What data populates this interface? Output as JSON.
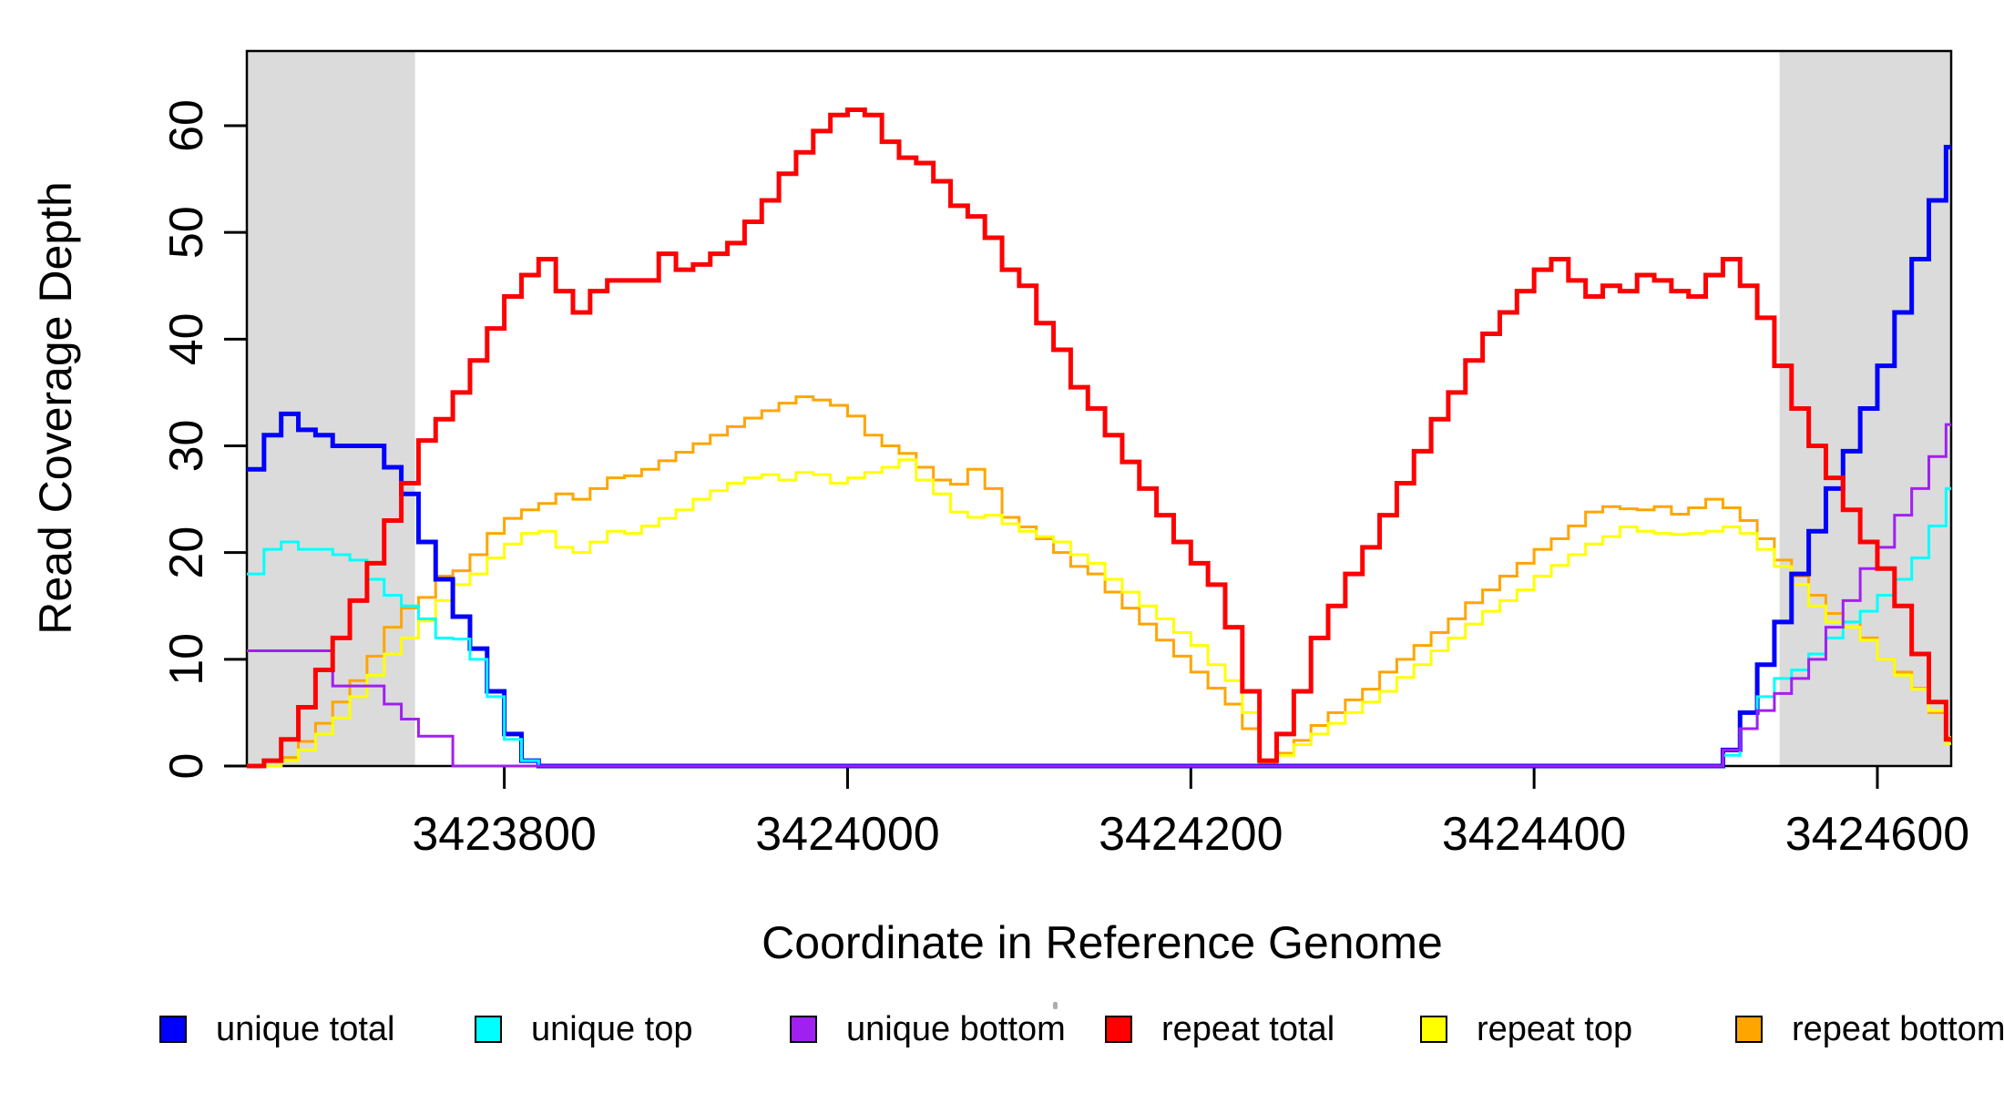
{
  "figure": {
    "y_axis": {
      "label": "Read Coverage Depth",
      "tick_labels": [
        "0",
        "10",
        "20",
        "30",
        "40",
        "50",
        "60"
      ],
      "tick_values": [
        0,
        10,
        20,
        30,
        40,
        50,
        60
      ]
    },
    "x_axis": {
      "label": "Coordinate in Reference Genome",
      "tick_labels": [
        "3423800",
        "3424000",
        "3424200",
        "3424400",
        "3424600"
      ],
      "tick_values": [
        3423800,
        3424000,
        3424200,
        3424400,
        3424600
      ]
    },
    "legend": {
      "items": [
        {
          "label": "unique total",
          "color": "#0000FF"
        },
        {
          "label": "unique top",
          "color": "#00FFFF"
        },
        {
          "label": "unique bottom",
          "color": "#A020F0"
        },
        {
          "label": "repeat total",
          "color": "#FF0000"
        },
        {
          "label": "repeat top",
          "color": "#FFFF00"
        },
        {
          "label": "repeat bottom",
          "color": "#FFA500"
        }
      ]
    },
    "highlight_color": "#DBDBDB",
    "axis_color": "#000000"
  },
  "chart_data": {
    "type": "line",
    "step": true,
    "title": "",
    "xlabel": "Coordinate in Reference Genome",
    "ylabel": "Read Coverage Depth",
    "xlim": [
      3423650,
      3424643
    ],
    "ylim": [
      0,
      67
    ],
    "grid": false,
    "legend_position": "bottom",
    "highlight_regions": [
      {
        "x0": 3423650,
        "x1": 3423748
      },
      {
        "x0": 3424543,
        "x1": 3424643
      }
    ],
    "x": [
      3423650,
      3423660,
      3423670,
      3423680,
      3423690,
      3423700,
      3423710,
      3423720,
      3423730,
      3423740,
      3423750,
      3423760,
      3423770,
      3423780,
      3423790,
      3423800,
      3423810,
      3423820,
      3423830,
      3423840,
      3423850,
      3423860,
      3423870,
      3423880,
      3423890,
      3423900,
      3423910,
      3423920,
      3423930,
      3423940,
      3423950,
      3423960,
      3423970,
      3423980,
      3423990,
      3424000,
      3424010,
      3424020,
      3424030,
      3424040,
      3424050,
      3424060,
      3424070,
      3424080,
      3424090,
      3424100,
      3424110,
      3424120,
      3424130,
      3424140,
      3424150,
      3424160,
      3424170,
      3424180,
      3424190,
      3424200,
      3424210,
      3424220,
      3424230,
      3424240,
      3424250,
      3424260,
      3424270,
      3424280,
      3424290,
      3424300,
      3424310,
      3424320,
      3424330,
      3424340,
      3424350,
      3424360,
      3424370,
      3424380,
      3424390,
      3424400,
      3424410,
      3424420,
      3424430,
      3424440,
      3424450,
      3424460,
      3424470,
      3424480,
      3424490,
      3424500,
      3424510,
      3424520,
      3424530,
      3424540,
      3424550,
      3424560,
      3424570,
      3424580,
      3424590,
      3424600,
      3424610,
      3424620,
      3424630,
      3424640
    ],
    "series": [
      {
        "name": "unique total",
        "color": "#0000FF",
        "width": 5,
        "values": [
          27.8,
          31,
          33,
          31.5,
          31,
          30,
          30,
          30,
          28,
          25.5,
          21,
          17.5,
          14,
          11,
          7,
          3,
          0.5,
          0,
          0,
          0,
          0,
          0,
          0,
          0,
          0,
          0,
          0,
          0,
          0,
          0,
          0,
          0,
          0,
          0,
          0,
          0,
          0,
          0,
          0,
          0,
          0,
          0,
          0,
          0,
          0,
          0,
          0,
          0,
          0,
          0,
          0,
          0,
          0,
          0,
          0,
          0,
          0,
          0,
          0,
          0,
          0,
          0,
          0,
          0,
          0,
          0,
          0,
          0,
          0,
          0,
          0,
          0,
          0,
          0,
          0,
          0,
          0,
          0,
          0,
          0,
          0,
          0,
          0,
          0,
          0,
          0,
          1.5,
          5,
          9.5,
          13.5,
          18,
          22,
          26,
          29.5,
          33.5,
          37.5,
          42.5,
          47.5,
          53,
          58
        ]
      },
      {
        "name": "unique top",
        "color": "#00FFFF",
        "width": 3,
        "values": [
          18,
          20.3,
          21,
          20.3,
          20.3,
          19.8,
          19.3,
          17.5,
          16,
          15,
          13.8,
          12,
          11.9,
          10,
          6.5,
          2.5,
          0.5,
          0,
          0,
          0,
          0,
          0,
          0,
          0,
          0,
          0,
          0,
          0,
          0,
          0,
          0,
          0,
          0,
          0,
          0,
          0,
          0,
          0,
          0,
          0,
          0,
          0,
          0,
          0,
          0,
          0,
          0,
          0,
          0,
          0,
          0,
          0,
          0,
          0,
          0,
          0,
          0,
          0,
          0,
          0,
          0,
          0,
          0,
          0,
          0,
          0,
          0,
          0,
          0,
          0,
          0,
          0,
          0,
          0,
          0,
          0,
          0,
          0,
          0,
          0,
          0,
          0,
          0,
          0,
          0,
          0,
          1,
          3.5,
          6.5,
          8.2,
          9,
          10.5,
          12,
          13.5,
          14.5,
          16,
          17.5,
          19.5,
          22.5,
          26
        ]
      },
      {
        "name": "unique bottom",
        "color": "#A020F0",
        "width": 3,
        "values": [
          10.8,
          10.8,
          10.8,
          10.8,
          10.8,
          7.5,
          7.5,
          7.5,
          5.8,
          4.4,
          2.8,
          2.8,
          0,
          0,
          0,
          0,
          0,
          0,
          0,
          0,
          0,
          0,
          0,
          0,
          0,
          0,
          0,
          0,
          0,
          0,
          0,
          0,
          0,
          0,
          0,
          0,
          0,
          0,
          0,
          0,
          0,
          0,
          0,
          0,
          0,
          0,
          0,
          0,
          0,
          0,
          0,
          0,
          0,
          0,
          0,
          0,
          0,
          0,
          0,
          0,
          0,
          0,
          0,
          0,
          0,
          0,
          0,
          0,
          0,
          0,
          0,
          0,
          0,
          0,
          0,
          0,
          0,
          0,
          0,
          0,
          0,
          0,
          0,
          0,
          0,
          0,
          1.5,
          3.5,
          5.2,
          6.8,
          8.2,
          10,
          13,
          15.5,
          18.5,
          20.5,
          23.5,
          26,
          29,
          32
        ]
      },
      {
        "name": "repeat total",
        "color": "#FF0000",
        "width": 5,
        "values": [
          0,
          0.5,
          2.5,
          5.5,
          9,
          12,
          15.5,
          19,
          23,
          26.5,
          30.5,
          32.5,
          35,
          38,
          41,
          44,
          46,
          47.5,
          44.5,
          42.5,
          44.5,
          45.5,
          45.5,
          45.5,
          48,
          46.5,
          47,
          48,
          49,
          51,
          53,
          55.5,
          57.5,
          59.5,
          61,
          61.5,
          61,
          58.5,
          57,
          56.5,
          54.8,
          52.5,
          51.5,
          49.5,
          46.5,
          45,
          41.5,
          39,
          35.5,
          33.5,
          31,
          28.5,
          26,
          23.5,
          21,
          19,
          17,
          13,
          7,
          0.5,
          3,
          7,
          12,
          15,
          18,
          20.5,
          23.5,
          26.5,
          29.5,
          32.5,
          35,
          38,
          40.5,
          42.5,
          44.5,
          46.5,
          47.5,
          45.5,
          44,
          45,
          44.5,
          46,
          45.5,
          44.5,
          44,
          46,
          47.5,
          45,
          42,
          37.5,
          33.5,
          30,
          27,
          24,
          21,
          18.5,
          15,
          10.5,
          6,
          2.5
        ]
      },
      {
        "name": "repeat top",
        "color": "#FFFF00",
        "width": 3,
        "values": [
          0,
          0,
          0.5,
          1.5,
          3,
          4.5,
          6.5,
          8.5,
          10.5,
          12,
          13.6,
          15.5,
          17,
          18,
          19.5,
          20.8,
          21.8,
          22,
          20.5,
          20,
          21,
          22,
          21.8,
          22.5,
          23.2,
          24,
          25,
          25.8,
          26.5,
          27,
          27.3,
          26.8,
          27.5,
          27.3,
          26.5,
          27,
          27.5,
          28,
          28.7,
          26.8,
          25.5,
          23.8,
          23.3,
          23.5,
          22.7,
          22,
          21.5,
          21,
          19.8,
          19,
          17.5,
          16.3,
          15,
          13.8,
          12.5,
          11.3,
          9.5,
          8,
          5,
          0.5,
          1,
          2,
          3,
          4,
          5,
          6,
          7,
          8.3,
          9.5,
          10.8,
          12,
          13.3,
          14.5,
          15.5,
          16.5,
          17.8,
          18.8,
          19.8,
          20.8,
          21.5,
          22.4,
          22,
          21.8,
          21.7,
          21.8,
          22,
          22.4,
          21.8,
          20.3,
          18.7,
          17,
          15,
          13.5,
          13,
          11.8,
          10,
          8.5,
          7.2,
          5.2,
          2.1
        ]
      },
      {
        "name": "repeat bottom",
        "color": "#FFA500",
        "width": 3,
        "values": [
          0,
          0,
          0.8,
          2.3,
          4,
          6,
          8,
          10.3,
          13,
          14.8,
          15.8,
          17.8,
          18.3,
          19.8,
          21.8,
          23.2,
          24,
          24.6,
          25.5,
          25,
          26,
          27,
          27.2,
          27.8,
          28.6,
          29.4,
          30.2,
          31,
          31.8,
          32.6,
          33.3,
          34,
          34.6,
          34.3,
          33.8,
          32.8,
          31,
          30,
          29.3,
          28,
          26.8,
          26.4,
          27.8,
          26,
          23.3,
          22.4,
          21.3,
          20,
          18.7,
          18,
          16.3,
          14.8,
          13.3,
          11.8,
          10.3,
          8.8,
          7.3,
          5.8,
          3.5,
          0.3,
          1.2,
          2.4,
          3.8,
          5,
          6.2,
          7.2,
          8.8,
          10,
          11.3,
          12.5,
          13.8,
          15.3,
          16.5,
          17.8,
          19,
          20.3,
          21.3,
          22.5,
          23.8,
          24.3,
          24.1,
          24,
          24.3,
          23.6,
          24.2,
          25,
          24.2,
          23,
          21.3,
          19.3,
          17.8,
          16,
          14.3,
          13.5,
          12,
          10,
          8.8,
          7.3,
          5,
          2.7
        ]
      }
    ],
    "draw_order": [
      "repeat bottom",
      "repeat top",
      "unique total",
      "unique top",
      "unique bottom",
      "repeat total"
    ]
  }
}
